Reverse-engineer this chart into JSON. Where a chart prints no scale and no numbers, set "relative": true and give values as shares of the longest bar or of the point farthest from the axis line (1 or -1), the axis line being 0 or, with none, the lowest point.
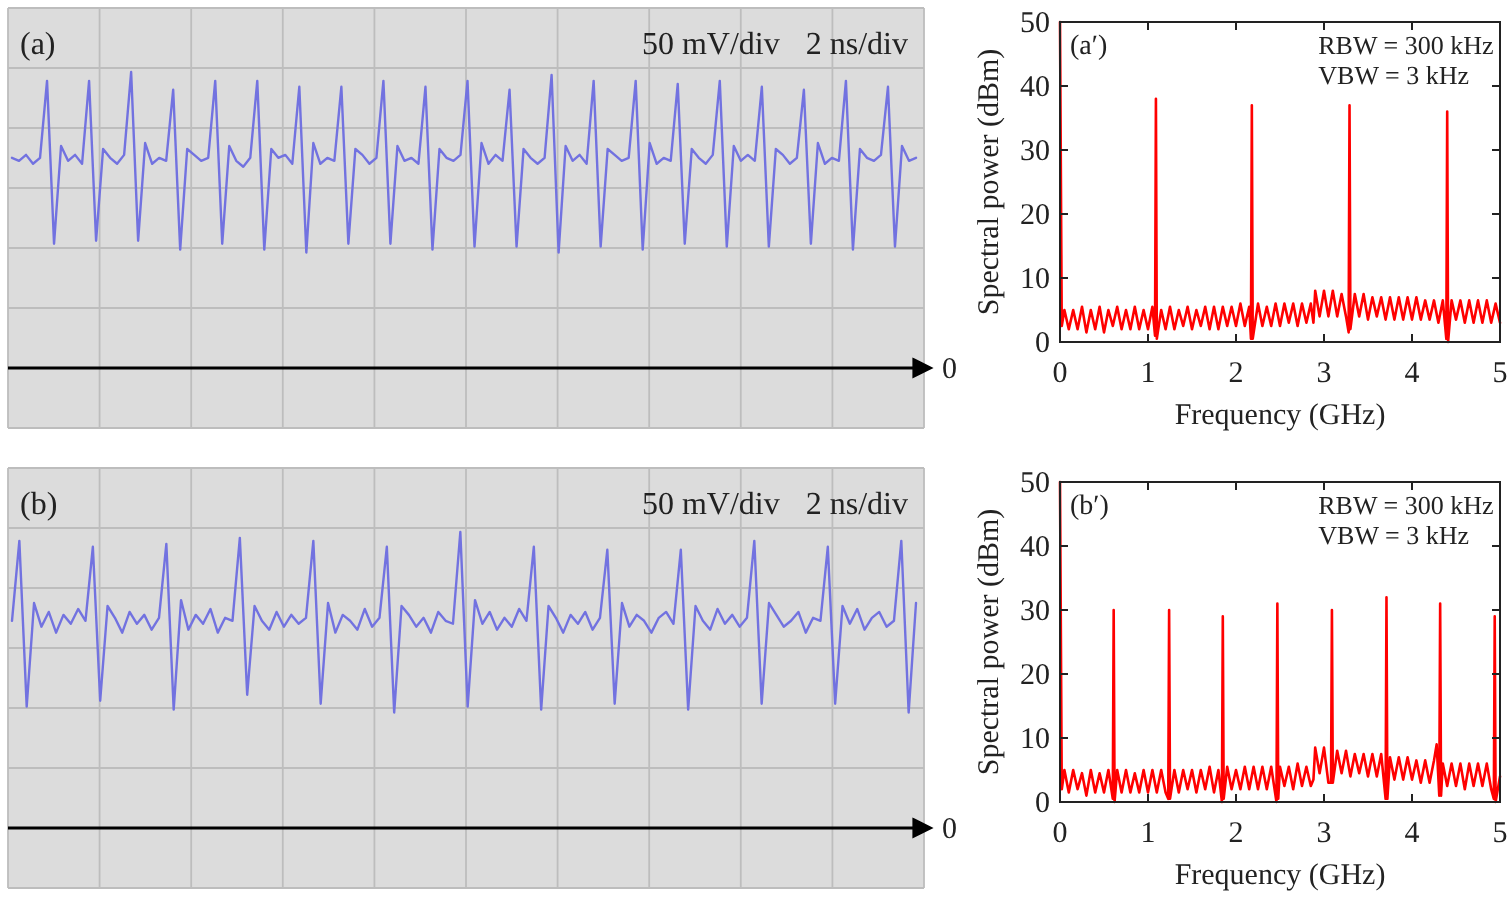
{
  "chart_data": [
    {
      "type": "line",
      "relative": true,
      "title": "(a)",
      "annotations": [
        "50 mV/div",
        "2 ns/div"
      ],
      "grid": true,
      "color": "#7272e0",
      "ref_lines": [
        {
          "axis": "y",
          "value": 0,
          "label": "0",
          "color": "#000000"
        }
      ],
      "categories": [
        null,
        null,
        null,
        null,
        null,
        null,
        null,
        null,
        null,
        null,
        null,
        null,
        null,
        null,
        null,
        null,
        null,
        null,
        null,
        null,
        null,
        null,
        null,
        null,
        null,
        null,
        null,
        null,
        null,
        null,
        null,
        null,
        null,
        null,
        null,
        null,
        null,
        null,
        null,
        null,
        null,
        null,
        null,
        null,
        null,
        null,
        null,
        null,
        null,
        null,
        null,
        null,
        null,
        null,
        null,
        null,
        null,
        null,
        null,
        null,
        null,
        null,
        null,
        null,
        null,
        null,
        null,
        null,
        null,
        null,
        null,
        null,
        null,
        null,
        null,
        null,
        null,
        null,
        null,
        null,
        null,
        null,
        null,
        null,
        null,
        null,
        null,
        null,
        null,
        null,
        null,
        null,
        null,
        null,
        null,
        null,
        null,
        null,
        null,
        null,
        null,
        null,
        null,
        null,
        null,
        null,
        null,
        null,
        null,
        null,
        null,
        null,
        null,
        null,
        null,
        null,
        null,
        null,
        null,
        null,
        null,
        null,
        null,
        null,
        null,
        null,
        null,
        null,
        null,
        null
      ],
      "values": [
        0.71,
        0.7,
        0.72,
        0.69,
        0.71,
        0.97,
        0.42,
        0.75,
        0.7,
        0.72,
        0.69,
        0.97,
        0.43,
        0.74,
        0.71,
        0.69,
        0.72,
        1.0,
        0.43,
        0.76,
        0.69,
        0.71,
        0.7,
        0.94,
        0.4,
        0.74,
        0.72,
        0.7,
        0.71,
        0.97,
        0.42,
        0.75,
        0.7,
        0.68,
        0.71,
        0.97,
        0.4,
        0.74,
        0.71,
        0.72,
        0.69,
        0.95,
        0.39,
        0.76,
        0.69,
        0.71,
        0.7,
        0.95,
        0.42,
        0.74,
        0.72,
        0.69,
        0.71,
        0.97,
        0.42,
        0.75,
        0.7,
        0.71,
        0.69,
        0.95,
        0.4,
        0.74,
        0.71,
        0.7,
        0.72,
        0.97,
        0.41,
        0.76,
        0.69,
        0.72,
        0.7,
        0.94,
        0.41,
        0.74,
        0.71,
        0.69,
        0.71,
        0.99,
        0.39,
        0.75,
        0.7,
        0.72,
        0.69,
        0.97,
        0.41,
        0.74,
        0.72,
        0.7,
        0.71,
        0.97,
        0.4,
        0.76,
        0.69,
        0.71,
        0.7,
        0.96,
        0.42,
        0.74,
        0.71,
        0.69,
        0.72,
        0.97,
        0.41,
        0.75,
        0.7,
        0.72,
        0.7,
        0.95,
        0.41,
        0.74,
        0.72,
        0.69,
        0.71,
        0.94,
        0.42,
        0.76,
        0.69,
        0.71,
        0.7,
        0.97,
        0.4,
        0.74,
        0.71,
        0.7,
        0.72,
        0.95,
        0.41,
        0.75,
        0.7,
        0.71
      ]
    },
    {
      "type": "line",
      "title": "(a′)",
      "xlabel": "Frequency (GHz)",
      "ylabel": "Spectral power (dBm)",
      "annotations": [
        "RBW = 300 kHz",
        "VBW = 3 kHz"
      ],
      "color": "#ff0000",
      "xlim": [
        0,
        5
      ],
      "ylim": [
        0,
        50
      ],
      "xticks": [
        0,
        1,
        2,
        3,
        4,
        5
      ],
      "yticks": [
        0,
        10,
        20,
        30,
        40,
        50
      ],
      "x": [
        0,
        0.02,
        0.05,
        0.1,
        0.15,
        0.2,
        0.25,
        0.3,
        0.35,
        0.4,
        0.45,
        0.5,
        0.55,
        0.6,
        0.65,
        0.7,
        0.75,
        0.8,
        0.85,
        0.9,
        0.95,
        1,
        1.05,
        1.08,
        1.09,
        1.1,
        1.15,
        1.2,
        1.25,
        1.3,
        1.35,
        1.4,
        1.45,
        1.5,
        1.55,
        1.6,
        1.65,
        1.7,
        1.75,
        1.8,
        1.85,
        1.9,
        1.95,
        2,
        2.05,
        2.1,
        2.15,
        2.17,
        2.18,
        2.19,
        2.25,
        2.3,
        2.35,
        2.4,
        2.45,
        2.5,
        2.55,
        2.6,
        2.65,
        2.7,
        2.75,
        2.8,
        2.85,
        2.88,
        2.9,
        2.95,
        3,
        3.05,
        3.1,
        3.15,
        3.2,
        3.25,
        3.28,
        3.29,
        3.3,
        3.35,
        3.4,
        3.45,
        3.5,
        3.55,
        3.6,
        3.65,
        3.7,
        3.75,
        3.8,
        3.85,
        3.9,
        3.95,
        4,
        4.05,
        4.1,
        4.15,
        4.2,
        4.25,
        4.3,
        4.35,
        4.39,
        4.4,
        4.41,
        4.45,
        4.5,
        4.55,
        4.6,
        4.65,
        4.7,
        4.75,
        4.8,
        4.85,
        4.9,
        4.95,
        5
      ],
      "values": [
        50,
        2.5,
        5,
        2,
        5,
        2,
        5.5,
        1.5,
        5,
        2,
        5.5,
        1.5,
        5,
        2.5,
        5.5,
        2,
        5,
        2,
        5.5,
        2,
        5,
        2,
        5.5,
        1,
        38,
        0.5,
        5,
        2,
        5.5,
        2,
        5,
        2.5,
        5.5,
        2,
        5,
        2.5,
        5.5,
        2,
        5.5,
        2,
        5.5,
        2.5,
        5.5,
        2.5,
        6,
        2.5,
        5.5,
        0.5,
        37,
        0.5,
        6,
        2.5,
        5.5,
        2.5,
        6,
        2.5,
        6,
        3,
        6,
        2.5,
        6,
        3,
        6,
        3,
        8,
        4,
        8,
        4,
        8,
        4,
        7.5,
        4,
        1.5,
        37,
        2,
        7.5,
        4,
        7.5,
        3.5,
        7,
        4,
        7,
        3.5,
        7,
        3.5,
        7,
        3.5,
        7,
        3.5,
        7,
        3.5,
        6.5,
        3.5,
        6.5,
        3,
        6.5,
        0.5,
        36,
        0,
        6.5,
        3.5,
        6.5,
        3,
        6.5,
        3,
        6.5,
        3,
        6.5,
        3,
        6,
        3
      ]
    },
    {
      "type": "line",
      "relative": true,
      "title": "(b)",
      "annotations": [
        "50 mV/div",
        "2 ns/div"
      ],
      "grid": true,
      "color": "#7272e0",
      "ref_lines": [
        {
          "axis": "y",
          "value": 0,
          "label": "0",
          "color": "#000000"
        }
      ],
      "categories": [
        null,
        null,
        null,
        null,
        null,
        null,
        null,
        null,
        null,
        null,
        null,
        null,
        null,
        null,
        null,
        null,
        null,
        null,
        null,
        null,
        null,
        null,
        null,
        null,
        null,
        null,
        null,
        null,
        null,
        null,
        null,
        null,
        null,
        null,
        null,
        null,
        null,
        null,
        null,
        null,
        null,
        null,
        null,
        null,
        null,
        null,
        null,
        null,
        null,
        null,
        null,
        null,
        null,
        null,
        null,
        null,
        null,
        null,
        null,
        null,
        null,
        null,
        null,
        null,
        null,
        null,
        null,
        null,
        null,
        null,
        null,
        null,
        null,
        null,
        null,
        null,
        null,
        null,
        null,
        null,
        null,
        null,
        null,
        null,
        null,
        null,
        null,
        null,
        null,
        null,
        null,
        null,
        null,
        null,
        null,
        null,
        null,
        null,
        null,
        null,
        null,
        null,
        null,
        null,
        null,
        null,
        null,
        null,
        null,
        null,
        null,
        null,
        null,
        null,
        null,
        null,
        null,
        null,
        null,
        null,
        null,
        null,
        null,
        null
      ],
      "values": [
        0.7,
        0.97,
        0.41,
        0.76,
        0.68,
        0.73,
        0.66,
        0.72,
        0.69,
        0.74,
        0.7,
        0.95,
        0.43,
        0.75,
        0.71,
        0.66,
        0.73,
        0.69,
        0.72,
        0.67,
        0.71,
        0.96,
        0.4,
        0.77,
        0.67,
        0.72,
        0.69,
        0.74,
        0.66,
        0.71,
        0.7,
        0.98,
        0.45,
        0.75,
        0.7,
        0.67,
        0.73,
        0.68,
        0.72,
        0.69,
        0.71,
        0.97,
        0.42,
        0.76,
        0.66,
        0.72,
        0.7,
        0.67,
        0.74,
        0.68,
        0.71,
        0.95,
        0.39,
        0.75,
        0.72,
        0.68,
        0.71,
        0.66,
        0.73,
        0.7,
        0.69,
        1.0,
        0.41,
        0.77,
        0.69,
        0.73,
        0.67,
        0.71,
        0.68,
        0.74,
        0.7,
        0.95,
        0.4,
        0.75,
        0.71,
        0.66,
        0.72,
        0.69,
        0.73,
        0.67,
        0.71,
        0.94,
        0.42,
        0.76,
        0.68,
        0.72,
        0.7,
        0.66,
        0.71,
        0.73,
        0.69,
        0.94,
        0.4,
        0.75,
        0.7,
        0.67,
        0.74,
        0.69,
        0.72,
        0.68,
        0.71,
        0.97,
        0.42,
        0.76,
        0.72,
        0.68,
        0.7,
        0.73,
        0.66,
        0.71,
        0.7,
        0.95,
        0.42,
        0.75,
        0.69,
        0.74,
        0.67,
        0.71,
        0.73,
        0.68,
        0.7,
        0.97,
        0.39,
        0.76
      ]
    },
    {
      "type": "line",
      "title": "(b′)",
      "xlabel": "Frequency (GHz)",
      "ylabel": "Spectral power (dBm)",
      "annotations": [
        "RBW = 300 kHz",
        "VBW = 3 kHz"
      ],
      "color": "#ff0000",
      "xlim": [
        0,
        5
      ],
      "ylim": [
        0,
        50
      ],
      "xticks": [
        0,
        1,
        2,
        3,
        4,
        5
      ],
      "yticks": [
        0,
        10,
        20,
        30,
        40,
        50
      ],
      "x": [
        0,
        0.02,
        0.05,
        0.1,
        0.15,
        0.2,
        0.25,
        0.3,
        0.35,
        0.4,
        0.45,
        0.5,
        0.55,
        0.6,
        0.61,
        0.62,
        0.65,
        0.7,
        0.75,
        0.8,
        0.85,
        0.9,
        0.95,
        1,
        1.05,
        1.1,
        1.15,
        1.2,
        1.23,
        1.24,
        1.25,
        1.3,
        1.35,
        1.4,
        1.45,
        1.5,
        1.55,
        1.6,
        1.65,
        1.7,
        1.75,
        1.8,
        1.84,
        1.85,
        1.86,
        1.9,
        1.95,
        2,
        2.05,
        2.1,
        2.15,
        2.2,
        2.25,
        2.3,
        2.35,
        2.4,
        2.46,
        2.47,
        2.48,
        2.5,
        2.55,
        2.6,
        2.65,
        2.7,
        2.75,
        2.8,
        2.85,
        2.88,
        2.9,
        2.95,
        3,
        3.05,
        3.08,
        3.09,
        3.1,
        3.15,
        3.2,
        3.25,
        3.3,
        3.35,
        3.4,
        3.45,
        3.5,
        3.55,
        3.6,
        3.65,
        3.7,
        3.71,
        3.72,
        3.75,
        3.8,
        3.85,
        3.9,
        3.95,
        4,
        4.05,
        4.1,
        4.15,
        4.2,
        4.25,
        4.28,
        4.31,
        4.32,
        4.33,
        4.35,
        4.4,
        4.45,
        4.5,
        4.55,
        4.6,
        4.65,
        4.7,
        4.75,
        4.8,
        4.85,
        4.9,
        4.93,
        4.94,
        4.95,
        5
      ],
      "values": [
        50,
        2,
        5,
        1.5,
        5,
        2,
        4.5,
        1,
        5,
        1.5,
        4.5,
        1.5,
        5,
        0.5,
        30,
        0,
        5,
        1.5,
        5,
        1.5,
        4.5,
        1.5,
        5,
        1.5,
        5,
        1.5,
        5,
        1.5,
        0.5,
        30,
        0.5,
        5,
        1.5,
        5,
        2,
        5,
        1.5,
        5,
        2,
        5.5,
        1.5,
        5,
        0,
        29,
        0.5,
        5.5,
        2,
        5,
        2,
        5.5,
        2,
        5.5,
        2,
        5.5,
        2,
        5.5,
        0,
        31,
        0.5,
        5.5,
        2.5,
        5.5,
        2,
        6,
        2.5,
        5.5,
        2.5,
        3.5,
        8.5,
        4.5,
        8.5,
        3,
        3,
        30,
        3,
        8,
        4.5,
        8,
        4,
        7.5,
        4.5,
        7.5,
        4,
        7.5,
        4,
        7.5,
        0.5,
        32,
        0.5,
        7,
        3.5,
        7,
        3.5,
        7,
        3.5,
        6.5,
        3,
        6.5,
        3,
        6.5,
        9,
        1,
        31,
        1,
        6,
        2.5,
        6,
        2.5,
        6,
        2,
        6,
        2.5,
        6,
        2.5,
        6,
        2,
        0.5,
        29,
        0,
        4
      ]
    }
  ]
}
